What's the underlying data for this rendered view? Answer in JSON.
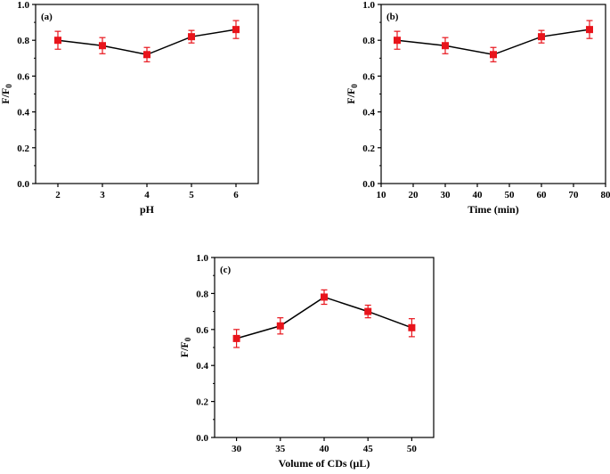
{
  "chart_data": [
    {
      "panel": "(a)",
      "type": "line",
      "xlabel": "pH",
      "ylabel_main": "F/F",
      "ylabel_sub": "0",
      "x": [
        2,
        3,
        4,
        5,
        6
      ],
      "y": [
        0.8,
        0.77,
        0.72,
        0.82,
        0.86
      ],
      "err": [
        0.05,
        0.045,
        0.04,
        0.035,
        0.05
      ],
      "xlim": [
        1.5,
        6.5
      ],
      "ylim": [
        0.0,
        1.0
      ],
      "xticks": [
        2,
        3,
        4,
        5,
        6
      ],
      "xtick_labels": [
        "2",
        "3",
        "4",
        "5",
        "6"
      ],
      "yticks": [
        0.0,
        0.2,
        0.4,
        0.6,
        0.8,
        1.0
      ],
      "ytick_labels": [
        "0.0",
        "0.2",
        "0.4",
        "0.6",
        "0.8",
        "1.0"
      ],
      "marker": "square",
      "marker_color": "#e8141b",
      "line_color": "#000000"
    },
    {
      "panel": "(b)",
      "type": "line",
      "xlabel": "Time (min)",
      "ylabel_main": "F/F",
      "ylabel_sub": "0",
      "x": [
        15,
        30,
        45,
        60,
        75
      ],
      "y": [
        0.8,
        0.77,
        0.72,
        0.82,
        0.86
      ],
      "err": [
        0.05,
        0.045,
        0.04,
        0.035,
        0.05
      ],
      "xlim": [
        10,
        80
      ],
      "ylim": [
        0.0,
        1.0
      ],
      "xticks": [
        10,
        20,
        30,
        40,
        50,
        60,
        70,
        80
      ],
      "xtick_labels": [
        "10",
        "20",
        "30",
        "40",
        "50",
        "60",
        "70",
        "80"
      ],
      "yticks": [
        0.0,
        0.2,
        0.4,
        0.6,
        0.8,
        1.0
      ],
      "ytick_labels": [
        "0.0",
        "0.2",
        "0.4",
        "0.6",
        "0.8",
        "1.0"
      ],
      "marker": "square",
      "marker_color": "#e8141b",
      "line_color": "#000000"
    },
    {
      "panel": "(c)",
      "type": "line",
      "xlabel": "Volume of CDs (μL)",
      "ylabel_main": "F/F",
      "ylabel_sub": "0",
      "x": [
        30,
        35,
        40,
        45,
        50
      ],
      "y": [
        0.55,
        0.62,
        0.78,
        0.7,
        0.61
      ],
      "err": [
        0.05,
        0.045,
        0.04,
        0.035,
        0.05
      ],
      "xlim": [
        27.5,
        52.5
      ],
      "ylim": [
        0.0,
        1.0
      ],
      "xticks": [
        30,
        35,
        40,
        45,
        50
      ],
      "xtick_labels": [
        "30",
        "35",
        "40",
        "45",
        "50"
      ],
      "yticks": [
        0.0,
        0.2,
        0.4,
        0.6,
        0.8,
        1.0
      ],
      "ytick_labels": [
        "0.0",
        "0.2",
        "0.4",
        "0.6",
        "0.8",
        "1.0"
      ],
      "marker": "square",
      "marker_color": "#e8141b",
      "line_color": "#000000"
    }
  ]
}
